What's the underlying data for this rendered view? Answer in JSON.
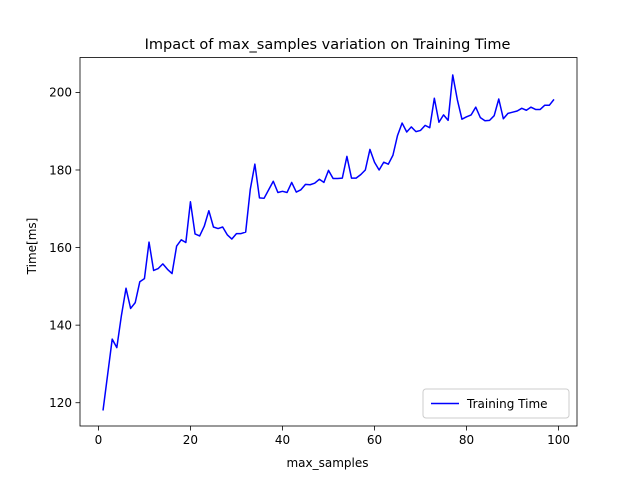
{
  "chart_data": {
    "type": "line",
    "title": "Impact of max_samples variation on Training Time",
    "xlabel": "max_samples",
    "ylabel": "Time[ms]",
    "xlim": [
      -4,
      104
    ],
    "ylim": [
      114,
      209
    ],
    "xticks": [
      0,
      20,
      40,
      60,
      80,
      100
    ],
    "yticks": [
      120,
      140,
      160,
      180,
      200
    ],
    "grid": false,
    "legend_position": "lower right",
    "series": [
      {
        "name": "Training Time",
        "color": "#0000ff",
        "x": [
          1,
          2,
          3,
          4,
          5,
          6,
          7,
          8,
          9,
          10,
          11,
          12,
          13,
          14,
          15,
          16,
          17,
          18,
          19,
          20,
          21,
          22,
          23,
          24,
          25,
          26,
          27,
          28,
          29,
          30,
          31,
          32,
          33,
          34,
          35,
          36,
          37,
          38,
          39,
          40,
          41,
          42,
          43,
          44,
          45,
          46,
          47,
          48,
          49,
          50,
          51,
          52,
          53,
          54,
          55,
          56,
          57,
          58,
          59,
          60,
          61,
          62,
          63,
          64,
          65,
          66,
          67,
          68,
          69,
          70,
          71,
          72,
          73,
          74,
          75,
          76,
          77,
          78,
          79,
          80,
          81,
          82,
          83,
          84,
          85,
          86,
          87,
          88,
          89,
          90,
          91,
          92,
          93,
          94,
          95,
          96,
          97,
          98,
          99
        ],
        "y": [
          118,
          127.2,
          136.4,
          134.2,
          142.5,
          149.5,
          144.3,
          145.8,
          151.2,
          152,
          161.4,
          154.1,
          154.6,
          155.8,
          154.4,
          153.3,
          160.4,
          162,
          161.3,
          171.8,
          163.5,
          163,
          165.5,
          169.5,
          165.3,
          164.9,
          165.3,
          163.3,
          162.2,
          163.6,
          163.6,
          164,
          175,
          181.5,
          172.8,
          172.7,
          174.9,
          177.1,
          174.2,
          174.5,
          174.2,
          176.8,
          174.3,
          174.9,
          176.3,
          176.2,
          176.6,
          177.6,
          176.8,
          179.9,
          177.8,
          177.8,
          177.9,
          183.5,
          177.9,
          177.9,
          178.8,
          180,
          185.3,
          182,
          180,
          182,
          181.5,
          183.8,
          188.9,
          192.1,
          189.8,
          191.1,
          189.9,
          190.2,
          191.5,
          190.9,
          198.5,
          192.3,
          194.2,
          192.8,
          204.5,
          198.1,
          193.1,
          193.7,
          194.2,
          196.2,
          193.5,
          192.7,
          192.8,
          194,
          198.3,
          193.2,
          194.6,
          194.9,
          195.2,
          195.9,
          195.4,
          196.2,
          195.6,
          195.6,
          196.7,
          196.7,
          198.2
        ]
      }
    ]
  }
}
